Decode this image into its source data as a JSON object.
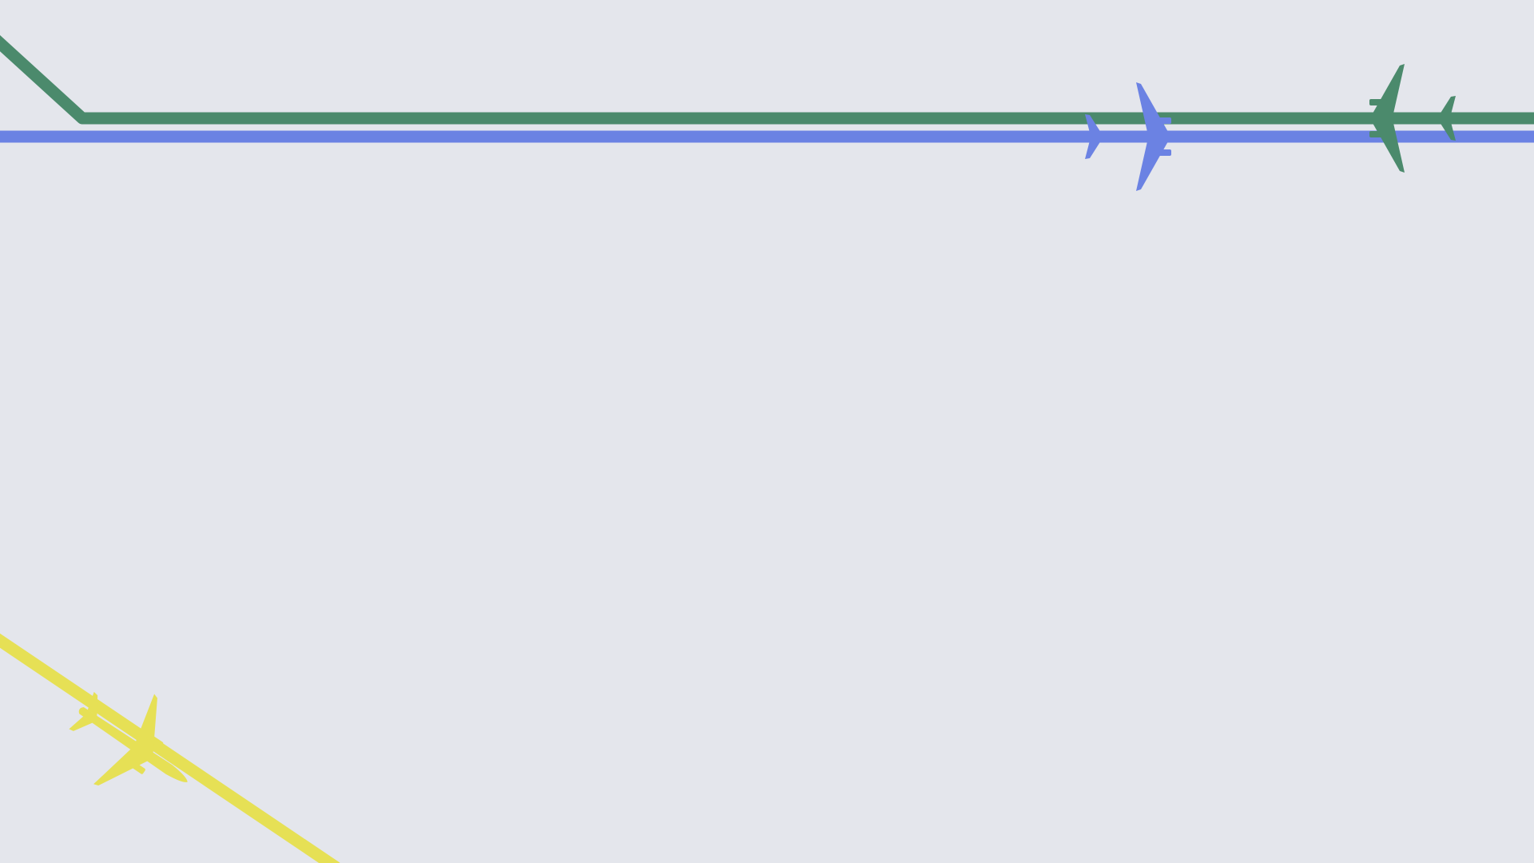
{
  "background": "#e4e6ec",
  "flight_paths": [
    {
      "id": "green",
      "color": "#4b8a6c"
    },
    {
      "id": "blue",
      "color": "#6b82e3"
    },
    {
      "id": "yellow",
      "color": "#e6e055"
    }
  ],
  "aircraft": [
    {
      "path": "blue",
      "color": "#6b82e3",
      "icon": "airplane-icon",
      "heading": "east"
    },
    {
      "path": "green",
      "color": "#4b8a6c",
      "icon": "airplane-icon",
      "heading": "west"
    },
    {
      "path": "yellow",
      "color": "#e6e055",
      "icon": "airplane-icon",
      "heading": "southeast"
    }
  ]
}
